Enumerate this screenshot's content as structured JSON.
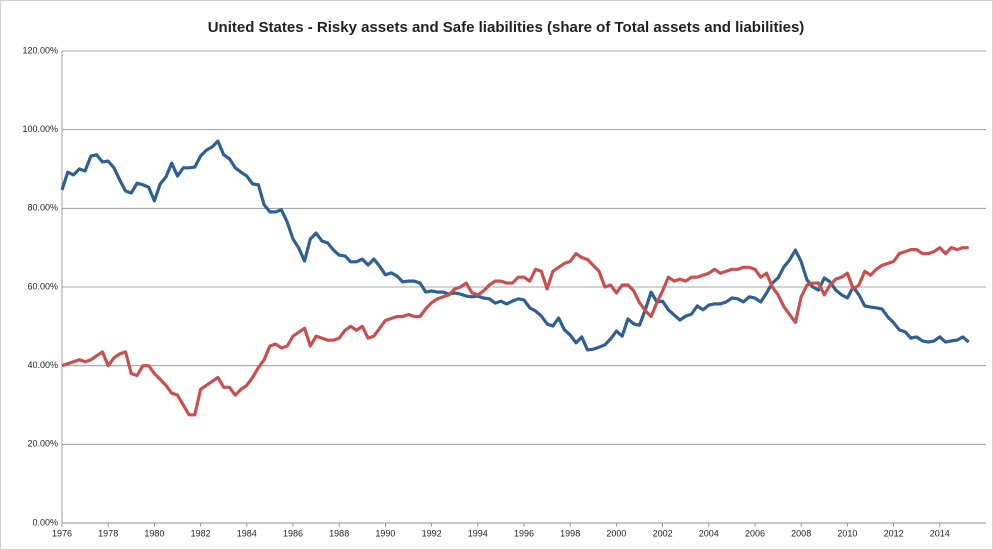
{
  "chart_data": {
    "type": "line",
    "title": "United States - Risky assets and Safe liabilities (share of Total assets and liabilities)",
    "x": [
      1976,
      1976.25,
      1976.5,
      1976.75,
      1977,
      1977.25,
      1977.5,
      1977.75,
      1978,
      1978.25,
      1978.5,
      1978.75,
      1979,
      1979.25,
      1979.5,
      1979.75,
      1980,
      1980.25,
      1980.5,
      1980.75,
      1981,
      1981.25,
      1981.5,
      1981.75,
      1982,
      1982.25,
      1982.5,
      1982.75,
      1983,
      1983.25,
      1983.5,
      1983.75,
      1984,
      1984.25,
      1984.5,
      1984.75,
      1985,
      1985.25,
      1985.5,
      1985.75,
      1986,
      1986.25,
      1986.5,
      1986.75,
      1987,
      1987.25,
      1987.5,
      1987.75,
      1988,
      1988.25,
      1988.5,
      1988.75,
      1989,
      1989.25,
      1989.5,
      1989.75,
      1990,
      1990.25,
      1990.5,
      1990.75,
      1991,
      1991.25,
      1991.5,
      1991.75,
      1992,
      1992.25,
      1992.5,
      1992.75,
      1993,
      1993.25,
      1993.5,
      1993.75,
      1994,
      1994.25,
      1994.5,
      1994.75,
      1995,
      1995.25,
      1995.5,
      1995.75,
      1996,
      1996.25,
      1996.5,
      1996.75,
      1997,
      1997.25,
      1997.5,
      1997.75,
      1998,
      1998.25,
      1998.5,
      1998.75,
      1999,
      1999.25,
      1999.5,
      1999.75,
      2000,
      2000.25,
      2000.5,
      2000.75,
      2001,
      2001.25,
      2001.5,
      2001.75,
      2002,
      2002.25,
      2002.5,
      2002.75,
      2003,
      2003.25,
      2003.5,
      2003.75,
      2004,
      2004.25,
      2004.5,
      2004.75,
      2005,
      2005.25,
      2005.5,
      2005.75,
      2006,
      2006.25,
      2006.5,
      2006.75,
      2007,
      2007.25,
      2007.5,
      2007.75,
      2008,
      2008.25,
      2008.5,
      2008.75,
      2009,
      2009.25,
      2009.5,
      2009.75,
      2010,
      2010.25,
      2010.5,
      2010.75,
      2011,
      2011.25,
      2011.5,
      2011.75,
      2012,
      2012.25,
      2012.5,
      2012.75,
      2013,
      2013.25,
      2013.5,
      2013.75,
      2014,
      2014.25,
      2014.5,
      2014.75,
      2015,
      2015.25
    ],
    "series": [
      {
        "color": "#2e5f95",
        "values": [
          84.7,
          89.2,
          88.5,
          90,
          89.5,
          93.3,
          93.6,
          91.8,
          92,
          90.3,
          87.2,
          84.4,
          83.9,
          86.4,
          86,
          85.4,
          81.9,
          86.2,
          88,
          91.5,
          88.2,
          90.3,
          90.3,
          90.5,
          93.3,
          94.8,
          95.6,
          97.1,
          93.6,
          92.6,
          90.3,
          89.2,
          88.2,
          86.2,
          86,
          80.9,
          79.1,
          79.1,
          79.6,
          76.5,
          72.2,
          69.9,
          66.6,
          72.2,
          73.7,
          71.7,
          71.2,
          69.4,
          68.1,
          67.9,
          66.4,
          66.4,
          67.1,
          65.6,
          67.1,
          65.3,
          63.1,
          63.6,
          62.8,
          61.3,
          61.5,
          61.5,
          61,
          58.7,
          59,
          58.7,
          58.7,
          58.2,
          58.5,
          58.2,
          57.7,
          57.5,
          57.7,
          57.2,
          57,
          55.9,
          56.4,
          55.7,
          56.4,
          57,
          56.7,
          54.7,
          53.9,
          52.6,
          50.6,
          50.1,
          52.1,
          49.1,
          47.8,
          45.8,
          47.3,
          44,
          44.2,
          44.7,
          45.3,
          46.8,
          48.8,
          47.5,
          51.9,
          50.6,
          50.3,
          54.2,
          58.7,
          56.2,
          56.4,
          54.2,
          52.9,
          51.6,
          52.6,
          53.1,
          55.2,
          54.2,
          55.4,
          55.7,
          55.7,
          56.2,
          57.2,
          57,
          56.2,
          57.5,
          57.2,
          56.2,
          58.5,
          61,
          62.3,
          65.1,
          66.9,
          69.4,
          66.4,
          61.8,
          60,
          59.2,
          62.3,
          61.3,
          59.2,
          58,
          57.2,
          60,
          58,
          55.2,
          54.9,
          54.7,
          54.4,
          52.4,
          50.9,
          49.1,
          48.6,
          47,
          47.3,
          46.3,
          46,
          46.3,
          47.3,
          46,
          46.3,
          46.5,
          47.3,
          46
        ]
      },
      {
        "color": "#c9504f",
        "values": [
          40,
          40.5,
          41,
          41.5,
          41,
          41.5,
          42.5,
          43.5,
          40,
          42,
          43,
          43.5,
          38,
          37.5,
          40,
          40,
          38,
          36.5,
          35,
          33,
          32.5,
          30,
          27.5,
          27.5,
          34,
          35,
          36,
          37,
          34.5,
          34.5,
          32.5,
          34,
          35,
          37,
          39.5,
          41.5,
          45,
          45.5,
          44.5,
          45,
          47.5,
          48.5,
          49.5,
          45,
          47.5,
          47,
          46.5,
          46.5,
          47,
          49,
          50,
          49,
          50,
          47,
          47.5,
          49.5,
          51.5,
          52,
          52.5,
          52.5,
          53,
          52.5,
          52.5,
          54.5,
          56,
          57,
          57.5,
          58,
          59.5,
          60,
          61,
          58.5,
          58,
          59,
          60.5,
          61.5,
          61.5,
          61,
          61,
          62.5,
          62.5,
          61.5,
          64.5,
          64,
          59.5,
          64,
          65,
          66,
          66.5,
          68.5,
          67.5,
          67,
          65.5,
          64,
          60,
          60.5,
          58.5,
          60.5,
          60.5,
          59,
          56,
          54,
          52.5,
          56,
          59,
          62.5,
          61.5,
          62,
          61.5,
          62.5,
          62.5,
          63,
          63.5,
          64.5,
          63.5,
          64,
          64.5,
          64.5,
          65,
          65,
          64.5,
          62.5,
          63.5,
          60,
          58,
          55,
          53,
          51,
          57.5,
          60.5,
          61,
          61,
          58,
          60.5,
          62,
          62.5,
          63.5,
          59.5,
          60.5,
          64,
          63,
          64.5,
          65.5,
          66,
          66.5,
          68.5,
          69,
          69.5,
          69.5,
          68.5,
          68.5,
          69,
          70,
          68.5,
          70,
          69.5,
          70,
          70
        ]
      }
    ],
    "xlim": [
      1976,
      2016
    ],
    "xticks": [
      1976,
      1978,
      1980,
      1982,
      1984,
      1986,
      1988,
      1990,
      1992,
      1994,
      1996,
      1998,
      2000,
      2002,
      2004,
      2006,
      2008,
      2010,
      2012,
      2014
    ],
    "ylim": [
      0,
      120
    ],
    "yticks": [
      {
        "value": 0,
        "label": "0.00%"
      },
      {
        "value": 20,
        "label": "20.00%"
      },
      {
        "value": 40,
        "label": "40.00%"
      },
      {
        "value": 60,
        "label": "60.00%"
      },
      {
        "value": 80,
        "label": "80.00%"
      },
      {
        "value": 100,
        "label": "100.00%"
      },
      {
        "value": 120,
        "label": "120.00%"
      }
    ],
    "grid": true
  }
}
